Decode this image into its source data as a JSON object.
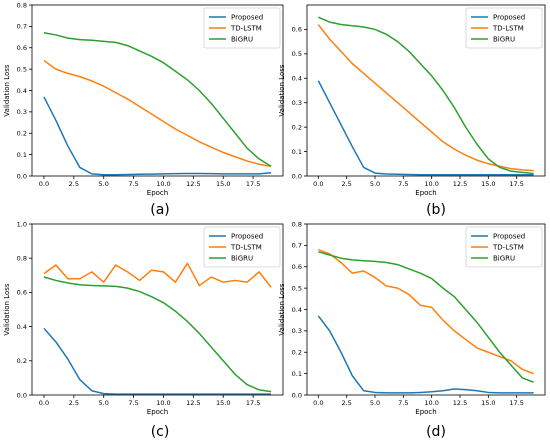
{
  "chart_data": [
    {
      "type": "line",
      "caption": "(a)",
      "xlabel": "Epoch",
      "ylabel": "Validation Loss",
      "xlim": [
        -1,
        20
      ],
      "ylim": [
        0,
        0.8
      ],
      "xticks": [
        "0.0",
        "2.5",
        "5.0",
        "7.5",
        "10.0",
        "12.5",
        "15.0",
        "17.5"
      ],
      "xtick_values": [
        0,
        2.5,
        5,
        7.5,
        10,
        12.5,
        15,
        17.5
      ],
      "yticks": [
        "0.0",
        "0.1",
        "0.2",
        "0.3",
        "0.4",
        "0.5",
        "0.6",
        "0.7",
        "0.8"
      ],
      "ytick_values": [
        0,
        0.1,
        0.2,
        0.3,
        0.4,
        0.5,
        0.6,
        0.7,
        0.8
      ],
      "legend_position": "top-right",
      "x": [
        0,
        1,
        2,
        3,
        4,
        5,
        6,
        7,
        8,
        9,
        10,
        11,
        12,
        13,
        14,
        15,
        16,
        17,
        18,
        19
      ],
      "series": [
        {
          "name": "Proposed",
          "color": "#1f77b4",
          "values": [
            0.37,
            0.26,
            0.14,
            0.04,
            0.01,
            0.006,
            0.006,
            0.007,
            0.008,
            0.009,
            0.01,
            0.011,
            0.012,
            0.012,
            0.011,
            0.01,
            0.01,
            0.01,
            0.01,
            0.015
          ]
        },
        {
          "name": "TD-LSTM",
          "color": "#ff7f0e",
          "values": [
            0.54,
            0.5,
            0.48,
            0.465,
            0.445,
            0.42,
            0.39,
            0.36,
            0.325,
            0.29,
            0.255,
            0.22,
            0.19,
            0.16,
            0.135,
            0.11,
            0.09,
            0.07,
            0.055,
            0.045
          ]
        },
        {
          "name": "BiGRU",
          "color": "#2ca02c",
          "values": [
            0.67,
            0.66,
            0.645,
            0.638,
            0.635,
            0.63,
            0.625,
            0.61,
            0.585,
            0.56,
            0.53,
            0.49,
            0.45,
            0.4,
            0.34,
            0.27,
            0.2,
            0.13,
            0.08,
            0.045
          ]
        }
      ]
    },
    {
      "type": "line",
      "caption": "(b)",
      "xlabel": "Epoch",
      "ylabel": "Validation Loss",
      "xlim": [
        -1,
        20
      ],
      "ylim": [
        0,
        0.7
      ],
      "xticks": [
        "0.0",
        "2.5",
        "5.0",
        "7.5",
        "10.0",
        "12.5",
        "15.0",
        "17.5"
      ],
      "xtick_values": [
        0,
        2.5,
        5,
        7.5,
        10,
        12.5,
        15,
        17.5
      ],
      "yticks": [
        "0.0",
        "0.1",
        "0.2",
        "0.3",
        "0.4",
        "0.5",
        "0.6"
      ],
      "ytick_values": [
        0,
        0.1,
        0.2,
        0.3,
        0.4,
        0.5,
        0.6
      ],
      "legend_position": "top-right",
      "x": [
        0,
        1,
        2,
        3,
        4,
        5,
        6,
        7,
        8,
        9,
        10,
        11,
        12,
        13,
        14,
        15,
        16,
        17,
        18,
        19
      ],
      "series": [
        {
          "name": "Proposed",
          "color": "#1f77b4",
          "values": [
            0.39,
            0.3,
            0.21,
            0.12,
            0.035,
            0.012,
            0.008,
            0.007,
            0.006,
            0.005,
            0.005,
            0.005,
            0.005,
            0.005,
            0.005,
            0.005,
            0.005,
            0.005,
            0.005,
            0.005
          ]
        },
        {
          "name": "TD-LSTM",
          "color": "#ff7f0e",
          "values": [
            0.62,
            0.56,
            0.51,
            0.46,
            0.42,
            0.38,
            0.34,
            0.3,
            0.26,
            0.22,
            0.18,
            0.14,
            0.11,
            0.085,
            0.065,
            0.05,
            0.04,
            0.03,
            0.025,
            0.022
          ]
        },
        {
          "name": "BiGRU",
          "color": "#2ca02c",
          "values": [
            0.65,
            0.63,
            0.62,
            0.615,
            0.61,
            0.6,
            0.58,
            0.55,
            0.51,
            0.46,
            0.41,
            0.35,
            0.28,
            0.2,
            0.13,
            0.07,
            0.035,
            0.02,
            0.015,
            0.01
          ]
        }
      ]
    },
    {
      "type": "line",
      "caption": "(c)",
      "xlabel": "Epoch",
      "ylabel": "Validation Loss",
      "xlim": [
        -1,
        20
      ],
      "ylim": [
        0,
        1.0
      ],
      "xticks": [
        "0.0",
        "2.5",
        "5.0",
        "7.5",
        "10.0",
        "12.5",
        "15.0",
        "17.5"
      ],
      "xtick_values": [
        0,
        2.5,
        5,
        7.5,
        10,
        12.5,
        15,
        17.5
      ],
      "yticks": [
        "0.0",
        "0.2",
        "0.4",
        "0.6",
        "0.8",
        "1.0"
      ],
      "ytick_values": [
        0,
        0.2,
        0.4,
        0.6,
        0.8,
        1.0
      ],
      "legend_position": "top-right",
      "x": [
        0,
        1,
        2,
        3,
        4,
        5,
        6,
        7,
        8,
        9,
        10,
        11,
        12,
        13,
        14,
        15,
        16,
        17,
        18,
        19
      ],
      "series": [
        {
          "name": "Proposed",
          "color": "#1f77b4",
          "values": [
            0.39,
            0.31,
            0.21,
            0.09,
            0.025,
            0.008,
            0.005,
            0.005,
            0.005,
            0.005,
            0.005,
            0.005,
            0.005,
            0.005,
            0.005,
            0.005,
            0.005,
            0.005,
            0.005,
            0.005
          ]
        },
        {
          "name": "TD-LSTM",
          "color": "#ff7f0e",
          "values": [
            0.71,
            0.76,
            0.68,
            0.68,
            0.72,
            0.66,
            0.76,
            0.72,
            0.67,
            0.73,
            0.72,
            0.66,
            0.77,
            0.64,
            0.69,
            0.66,
            0.67,
            0.66,
            0.72,
            0.63
          ]
        },
        {
          "name": "BiGRU",
          "color": "#2ca02c",
          "values": [
            0.69,
            0.67,
            0.655,
            0.645,
            0.64,
            0.638,
            0.635,
            0.625,
            0.605,
            0.575,
            0.54,
            0.49,
            0.43,
            0.36,
            0.28,
            0.2,
            0.12,
            0.06,
            0.03,
            0.02
          ]
        }
      ]
    },
    {
      "type": "line",
      "caption": "(d)",
      "xlabel": "Epoch",
      "ylabel": "Validation Loss",
      "xlim": [
        -1,
        20
      ],
      "ylim": [
        0,
        0.8
      ],
      "xticks": [
        "0.0",
        "2.5",
        "5.0",
        "7.5",
        "10.0",
        "12.5",
        "15.0",
        "17.5"
      ],
      "xtick_values": [
        0,
        2.5,
        5,
        7.5,
        10,
        12.5,
        15,
        17.5
      ],
      "yticks": [
        "0.0",
        "0.1",
        "0.2",
        "0.3",
        "0.4",
        "0.5",
        "0.6",
        "0.7",
        "0.8"
      ],
      "ytick_values": [
        0,
        0.1,
        0.2,
        0.3,
        0.4,
        0.5,
        0.6,
        0.7,
        0.8
      ],
      "legend_position": "top-right",
      "x": [
        0,
        1,
        2,
        3,
        4,
        5,
        6,
        7,
        8,
        9,
        10,
        11,
        12,
        13,
        14,
        15,
        16,
        17,
        18,
        19
      ],
      "series": [
        {
          "name": "Proposed",
          "color": "#1f77b4",
          "values": [
            0.37,
            0.3,
            0.2,
            0.09,
            0.02,
            0.012,
            0.01,
            0.01,
            0.01,
            0.012,
            0.015,
            0.02,
            0.028,
            0.025,
            0.02,
            0.012,
            0.01,
            0.01,
            0.01,
            0.01
          ]
        },
        {
          "name": "TD-LSTM",
          "color": "#ff7f0e",
          "values": [
            0.68,
            0.66,
            0.62,
            0.57,
            0.58,
            0.55,
            0.51,
            0.5,
            0.47,
            0.42,
            0.41,
            0.35,
            0.3,
            0.26,
            0.22,
            0.2,
            0.18,
            0.16,
            0.12,
            0.1
          ]
        },
        {
          "name": "BiGRU",
          "color": "#2ca02c",
          "values": [
            0.67,
            0.655,
            0.64,
            0.632,
            0.628,
            0.625,
            0.62,
            0.61,
            0.59,
            0.57,
            0.545,
            0.5,
            0.46,
            0.4,
            0.34,
            0.27,
            0.2,
            0.14,
            0.08,
            0.06
          ]
        }
      ]
    }
  ]
}
